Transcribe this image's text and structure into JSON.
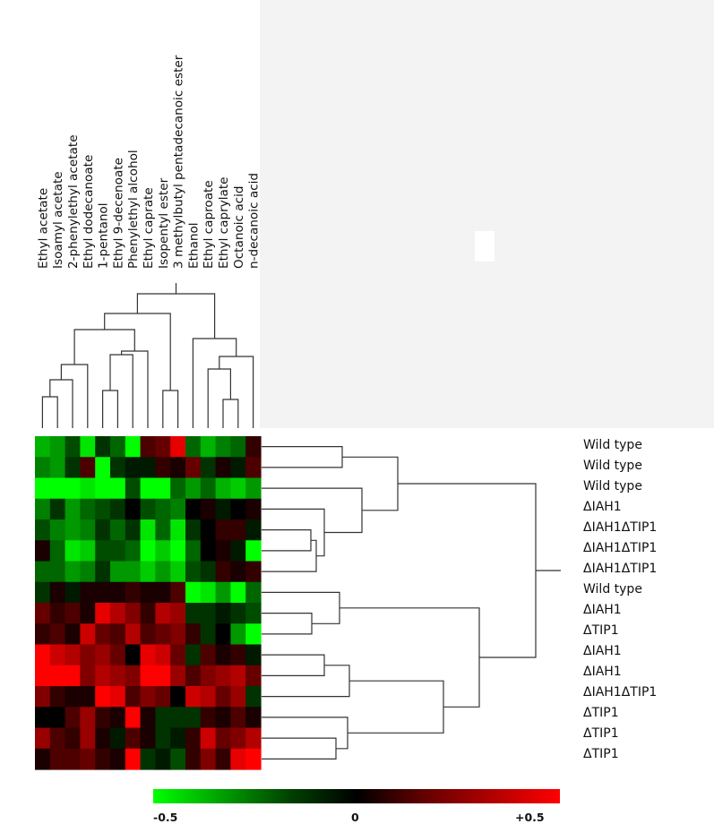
{
  "chart_data": {
    "type": "heatmap",
    "title": "",
    "columns": [
      "Ethyl acetate",
      "Isoamyl acetate",
      "2-phenylethyl acetate",
      "Ethyl dodecanoate",
      "1-pentanol",
      "Ethyl 9-decenoate",
      "Phenylethyl alcohol",
      "Ethyl caprate",
      "Isopentyl ester",
      "3 methylbutyl pentadecanoic ester",
      "Ethanol",
      "Ethyl caproate",
      "Ethyl caprylate",
      "Octanoic acid",
      "n-decanoic acid"
    ],
    "rows": [
      "Wild type",
      "Wild type",
      "Wild type",
      "ΔIAH1",
      "ΔIAH1ΔTIP1",
      "ΔIAH1ΔTIP1",
      "ΔIAH1ΔTIP1",
      "Wild type",
      "ΔIAH1",
      "ΔTIP1",
      "ΔIAH1",
      "ΔIAH1",
      "ΔIAH1ΔTIP1",
      "ΔTIP1",
      "ΔTIP1",
      "ΔTIP1"
    ],
    "values": [
      [
        -0.35,
        -0.3,
        -0.15,
        -0.45,
        -0.1,
        -0.2,
        -0.55,
        0.15,
        0.2,
        0.45,
        -0.2,
        -0.35,
        -0.25,
        -0.2,
        0.1
      ],
      [
        -0.25,
        -0.3,
        -0.1,
        0.15,
        -0.5,
        -0.1,
        -0.05,
        -0.05,
        0.1,
        0.05,
        0.2,
        -0.1,
        0.05,
        -0.05,
        0.15
      ],
      [
        -0.6,
        -0.6,
        -0.55,
        -0.45,
        -0.6,
        -0.6,
        -0.15,
        -0.6,
        -0.55,
        -0.2,
        -0.3,
        -0.2,
        -0.35,
        -0.4,
        -0.3
      ],
      [
        -0.25,
        -0.1,
        -0.3,
        -0.2,
        -0.15,
        -0.1,
        0.0,
        -0.15,
        -0.2,
        -0.25,
        0.0,
        0.05,
        -0.05,
        0.0,
        0.05
      ],
      [
        -0.15,
        -0.25,
        -0.3,
        -0.25,
        -0.1,
        -0.2,
        -0.1,
        -0.45,
        -0.2,
        -0.45,
        -0.1,
        0.0,
        0.1,
        0.1,
        -0.05
      ],
      [
        0.05,
        -0.2,
        -0.45,
        -0.4,
        -0.15,
        -0.15,
        -0.2,
        -0.55,
        -0.4,
        -0.5,
        -0.2,
        0.0,
        0.05,
        -0.05,
        -0.55
      ],
      [
        -0.2,
        -0.2,
        -0.3,
        -0.25,
        -0.1,
        -0.3,
        -0.3,
        -0.4,
        -0.3,
        -0.4,
        -0.15,
        -0.1,
        0.1,
        0.05,
        0.1
      ],
      [
        -0.1,
        0.05,
        -0.05,
        0.05,
        0.05,
        0.05,
        0.1,
        0.05,
        0.05,
        0.15,
        -0.55,
        -0.45,
        -0.3,
        -0.5,
        -0.2
      ],
      [
        0.2,
        0.1,
        0.15,
        0.05,
        0.45,
        0.35,
        0.25,
        0.1,
        0.35,
        0.3,
        -0.1,
        -0.1,
        -0.05,
        -0.1,
        -0.15
      ],
      [
        0.1,
        0.15,
        0.05,
        0.4,
        0.2,
        0.15,
        0.35,
        0.15,
        0.2,
        0.25,
        0.1,
        -0.1,
        0.0,
        -0.3,
        -0.5
      ],
      [
        0.5,
        0.4,
        0.35,
        0.25,
        0.3,
        0.2,
        0.0,
        0.45,
        0.4,
        0.2,
        -0.1,
        0.15,
        0.05,
        0.1,
        -0.05
      ],
      [
        0.55,
        0.6,
        0.55,
        0.25,
        0.35,
        0.3,
        0.25,
        0.55,
        0.5,
        0.3,
        0.15,
        0.25,
        0.3,
        0.35,
        0.2
      ],
      [
        0.25,
        0.1,
        0.05,
        0.05,
        0.55,
        0.45,
        0.15,
        0.25,
        0.2,
        0.0,
        0.4,
        0.35,
        0.2,
        0.3,
        -0.1
      ],
      [
        0.0,
        0.0,
        0.15,
        0.3,
        0.1,
        0.05,
        0.5,
        0.05,
        -0.1,
        -0.1,
        -0.1,
        0.1,
        0.05,
        0.15,
        0.05
      ],
      [
        0.3,
        0.15,
        0.1,
        0.3,
        0.05,
        -0.05,
        0.15,
        0.05,
        -0.1,
        -0.05,
        0.1,
        0.4,
        0.2,
        0.25,
        0.35
      ],
      [
        0.05,
        0.15,
        0.15,
        0.2,
        0.1,
        0.05,
        0.55,
        -0.1,
        -0.05,
        -0.15,
        0.1,
        0.25,
        0.1,
        0.45,
        0.5
      ]
    ],
    "color_scale": {
      "min": -0.5,
      "mid": 0,
      "max": 0.5,
      "colors": {
        "low": "#00ff00",
        "mid": "#000000",
        "high": "#ff0000"
      },
      "tick_labels": [
        "-0.5",
        "0",
        "+0.5"
      ]
    },
    "legend": "bottom",
    "dendrograms": [
      "top",
      "right"
    ]
  }
}
